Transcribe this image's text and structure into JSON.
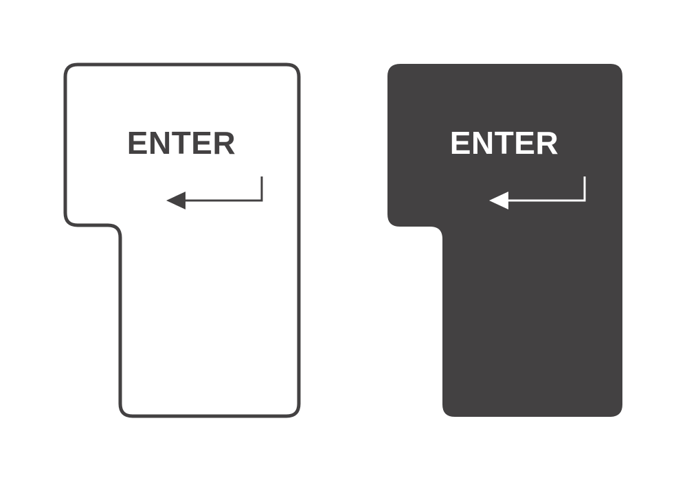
{
  "keys": [
    {
      "label": "ENTER",
      "style": "outline",
      "fill": "#ffffff",
      "stroke": "#434142",
      "text_color": "#434142",
      "arrow_icon": "return-arrow-icon"
    },
    {
      "label": "ENTER",
      "style": "filled",
      "fill": "#434142",
      "stroke": "#434142",
      "text_color": "#ffffff",
      "arrow_icon": "return-arrow-icon"
    }
  ]
}
